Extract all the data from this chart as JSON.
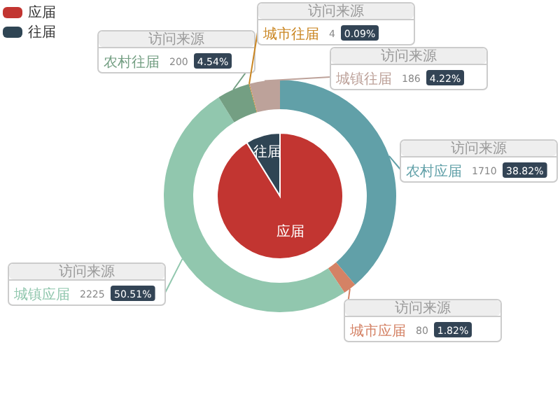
{
  "chart_data": [
    {
      "type": "pie",
      "categories": [
        "应届",
        "往届"
      ],
      "values": [
        91.15,
        8.85
      ],
      "colors": [
        "#c23531",
        "#2f4554"
      ],
      "legend": "top left"
    },
    {
      "type": "donut",
      "categories": [
        "农村应届",
        "城市应届",
        "城镇应届",
        "农村往届",
        "城市往届",
        "城镇往届"
      ],
      "series": [
        {
          "name": "访问来源",
          "values": [
            1710,
            80,
            2225,
            200,
            4,
            186
          ],
          "colors": [
            "#61a0a8",
            "#d48265",
            "#91c7ae",
            "#749f83",
            "#ca8622",
            "#bda29a"
          ],
          "value_labels": [
            "1710 38.82%",
            "80 1.82%",
            "2225 50.51%",
            "200 4.54%",
            "4 0.09%",
            "186 4.22%"
          ]
        }
      ]
    }
  ]
}
